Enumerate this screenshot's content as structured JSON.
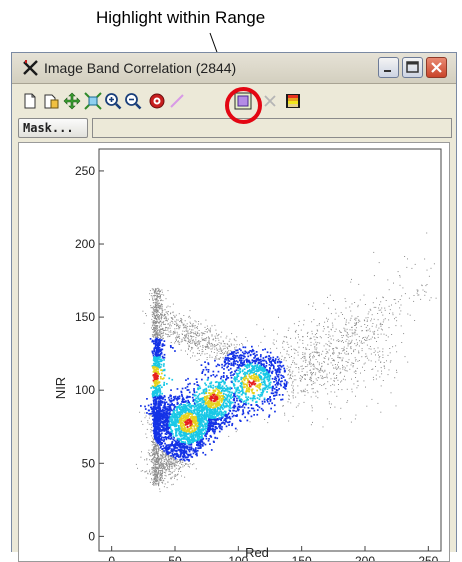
{
  "annotation": {
    "callout_text": "Highlight within Range"
  },
  "window": {
    "title": "Image Band Correlation (2844)",
    "buttons": {
      "minimize": "minimize",
      "maximize": "maximize",
      "close": "close"
    }
  },
  "toolbar": {
    "tools": [
      "new-icon",
      "save-icon",
      "pan-icon",
      "zoom-extents-icon",
      "zoom-in-icon",
      "zoom-out-icon",
      "target-icon",
      "line-tool-icon",
      "highlight-within-range-icon",
      "clear-x-icon",
      "color-palette-icon"
    ]
  },
  "mask": {
    "button_label": "Mask...",
    "field_value": ""
  },
  "chart_data": {
    "type": "scatter",
    "title": "",
    "xlabel": "Red",
    "ylabel": "NIR",
    "xlim": [
      -10,
      260
    ],
    "ylim": [
      -10,
      265
    ],
    "x_ticks": [
      "0",
      "50",
      "100",
      "150",
      "200",
      "250"
    ],
    "y_ticks": [
      "0",
      "50",
      "100",
      "150",
      "200",
      "250"
    ],
    "density_peaks": [
      {
        "x": 33,
        "y": 110,
        "level": "high"
      },
      {
        "x": 60,
        "y": 78,
        "level": "high"
      },
      {
        "x": 80,
        "y": 95,
        "level": "medium"
      },
      {
        "x": 110,
        "y": 105,
        "level": "low"
      }
    ],
    "colors": {
      "sparse": "#8c8c8c",
      "low": "#1432e6",
      "medium": "#19c8e6",
      "high": "#e6d21e",
      "peak": "#e61e1e"
    }
  }
}
